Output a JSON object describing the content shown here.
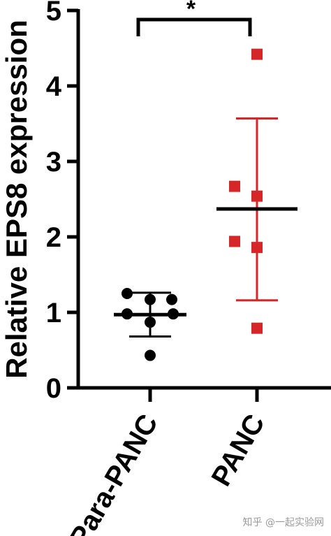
{
  "chart_data": {
    "type": "scatter",
    "ylabel": "Relative EPS8 expression",
    "ylim": [
      0,
      5
    ],
    "yticks": [
      "0",
      "1",
      "2",
      "3",
      "4",
      "5"
    ],
    "categories": [
      "Para-PANC",
      "PANC"
    ],
    "series": [
      {
        "category": "Para-PANC",
        "color": "#000000",
        "marker": "circle",
        "values": [
          1.25,
          1.17,
          1.17,
          0.98,
          0.98,
          0.87,
          0.43
        ],
        "mean": 0.97,
        "error_upper": 1.26,
        "error_lower": 0.68
      },
      {
        "category": "PANC",
        "color": "#d62728",
        "marker": "square",
        "values": [
          4.42,
          2.67,
          2.54,
          1.94,
          1.86,
          0.79
        ],
        "mean": 2.37,
        "error_upper": 3.57,
        "error_lower": 1.16
      }
    ],
    "significance": {
      "label": "*"
    },
    "watermark": "知乎 @一起实验网"
  }
}
